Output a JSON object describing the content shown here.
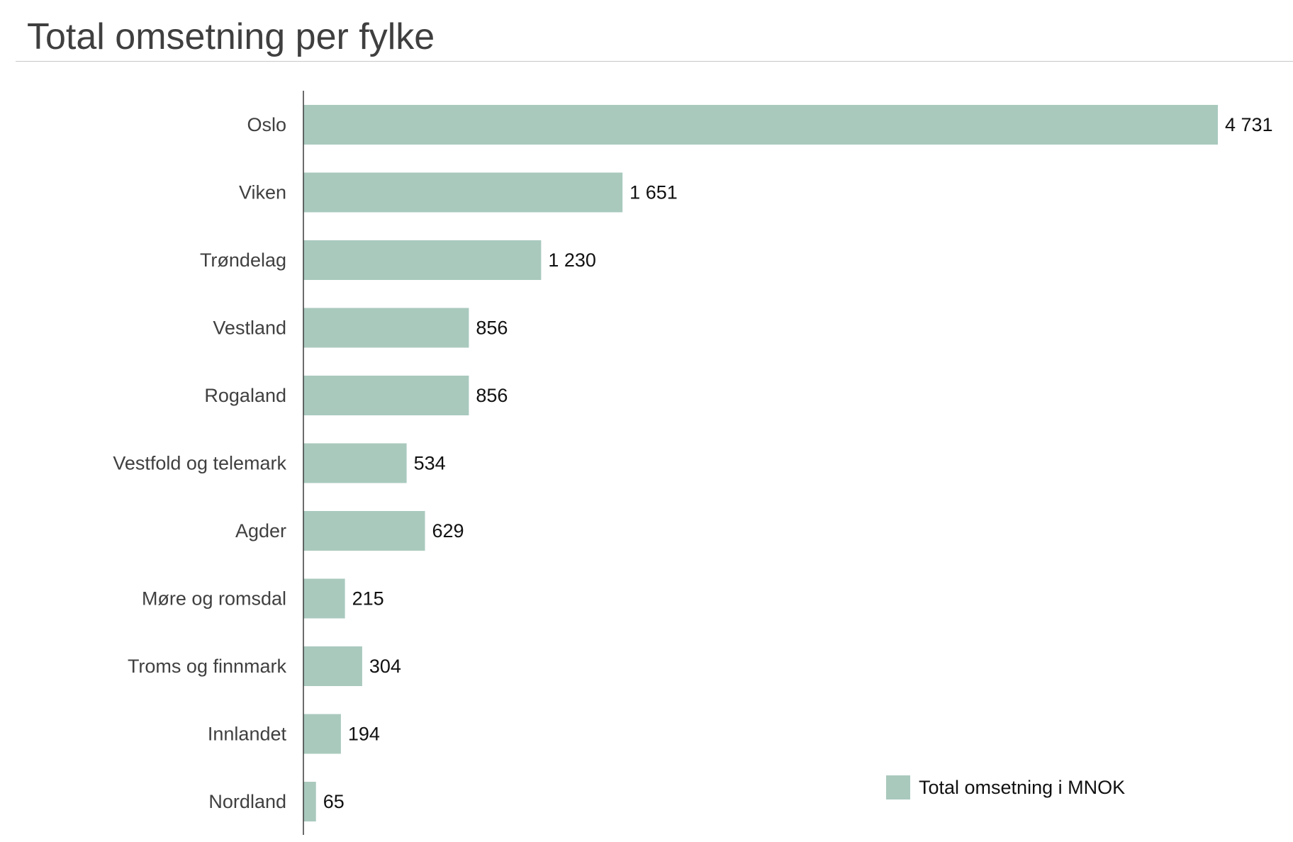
{
  "chart_data": {
    "type": "bar",
    "orientation": "horizontal",
    "title": "Total omsetning per fylke",
    "categories": [
      "Oslo",
      "Viken",
      "Trøndelag",
      "Vestland",
      "Rogaland",
      "Vestfold og telemark",
      "Agder",
      "Møre og romsdal",
      "Troms og finnmark",
      "Innlandet",
      "Nordland"
    ],
    "series": [
      {
        "name": "Total omsetning i MNOK",
        "values": [
          4731,
          1651,
          1230,
          856,
          856,
          534,
          629,
          215,
          304,
          194,
          65
        ],
        "value_labels": [
          "4 731",
          "1 651",
          "1 230",
          "856",
          "856",
          "534",
          "629",
          "215",
          "304",
          "194",
          "65"
        ]
      }
    ],
    "xlim": [
      0,
      4731
    ],
    "grid": false,
    "legend": "bottom-right",
    "colors": {
      "bar": "#a9c9bd",
      "axis": "#3a3a3a",
      "title": "#3f3f3f"
    }
  }
}
